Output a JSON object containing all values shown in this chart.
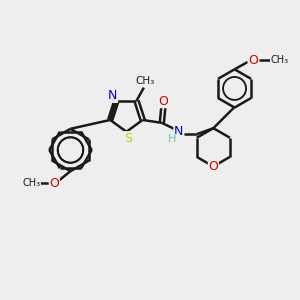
{
  "background_color": "#eeeeee",
  "bond_color": "#1a1a1a",
  "bond_width": 1.8,
  "atom_colors": {
    "N": "#0000cc",
    "S": "#cccc00",
    "O": "#cc0000",
    "C": "#1a1a1a",
    "H": "#6fbfbf"
  },
  "font_size": 8,
  "fig_width": 3.0,
  "fig_height": 3.0,
  "xlim": [
    0,
    10
  ],
  "ylim": [
    0,
    10
  ]
}
